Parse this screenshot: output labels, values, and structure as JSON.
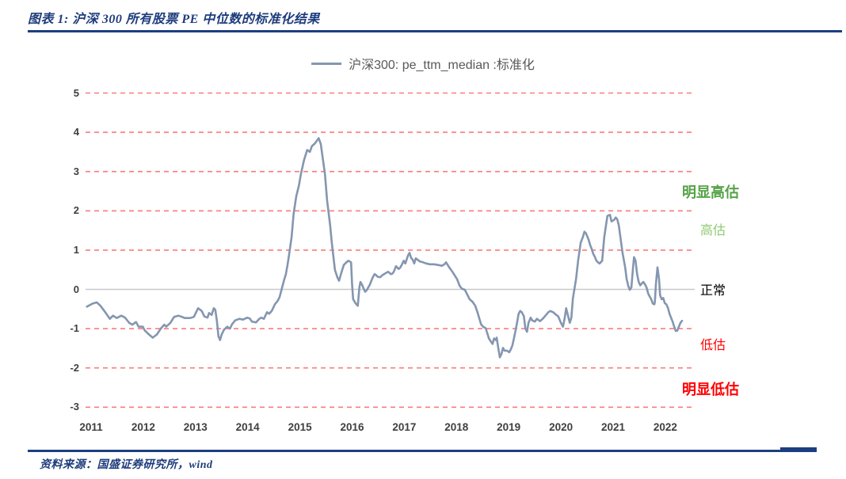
{
  "header": {
    "title": "图表 1: 沪深 300 所有股票 PE 中位数的标准化结果"
  },
  "footer": {
    "source": "资料来源：国盛证券研究所，wind"
  },
  "colors": {
    "accent_navy": "#1c3e80",
    "title_navy": "#1e3d7d",
    "line_blue_gray": "#8496B0",
    "grid_dash_red": "#FB7B7B",
    "zero_line_gray": "#C9C9C9",
    "tick_label_gray": "#3f3f3f",
    "legend_text_gray": "#595959",
    "zone_green_strong": "#55A348",
    "zone_green_light": "#90C873",
    "zone_black": "#000000",
    "zone_red": "#FF0000"
  },
  "chart_data": {
    "type": "line",
    "title": "沪深300: pe_ttm_median :标准化",
    "legend": {
      "label": "沪深300: pe_ttm_median :标准化",
      "position": "top-center",
      "line_color": "#8496B0"
    },
    "x_axis": {
      "label": "",
      "ticks": [
        2011,
        2012,
        2013,
        2014,
        2015,
        2016,
        2017,
        2018,
        2019,
        2020,
        2021,
        2022
      ],
      "range": [
        2010.88,
        2022.56
      ]
    },
    "y_axis": {
      "label": "",
      "ticks": [
        5,
        4,
        3,
        2,
        1,
        0,
        -1,
        -2,
        -3
      ],
      "range": [
        -3.45,
        5.45
      ]
    },
    "grid": {
      "style": "horizontal-dashed",
      "color": "#FB7B7B",
      "zero_line_color": "#C9C9C9"
    },
    "zone_labels": [
      {
        "label": "明显高估",
        "value": 2.47,
        "color": "#55A348",
        "bold": true
      },
      {
        "label": "高估",
        "value": 1.48,
        "color": "#90C873",
        "bold": false
      },
      {
        "label": "正常",
        "value": -0.05,
        "color": "#000000",
        "bold": false
      },
      {
        "label": "低估",
        "value": -1.44,
        "color": "#FF0000",
        "bold": false
      },
      {
        "label": "明显低估",
        "value": -2.55,
        "color": "#FF0000",
        "bold": true
      }
    ],
    "series": [
      {
        "name": "沪深300: pe_ttm_median :标准化",
        "color": "#8496B0",
        "points": [
          [
            2010.92,
            -0.44
          ],
          [
            2011.03,
            -0.36
          ],
          [
            2011.11,
            -0.33
          ],
          [
            2011.18,
            -0.42
          ],
          [
            2011.27,
            -0.58
          ],
          [
            2011.36,
            -0.75
          ],
          [
            2011.42,
            -0.67
          ],
          [
            2011.49,
            -0.73
          ],
          [
            2011.58,
            -0.67
          ],
          [
            2011.65,
            -0.72
          ],
          [
            2011.73,
            -0.85
          ],
          [
            2011.79,
            -0.9
          ],
          [
            2011.86,
            -0.83
          ],
          [
            2011.91,
            -0.95
          ],
          [
            2011.99,
            -0.95
          ],
          [
            2012.03,
            -1.05
          ],
          [
            2012.11,
            -1.15
          ],
          [
            2012.18,
            -1.23
          ],
          [
            2012.26,
            -1.15
          ],
          [
            2012.34,
            -0.99
          ],
          [
            2012.4,
            -0.9
          ],
          [
            2012.44,
            -0.95
          ],
          [
            2012.52,
            -0.85
          ],
          [
            2012.59,
            -0.7
          ],
          [
            2012.67,
            -0.67
          ],
          [
            2012.74,
            -0.7
          ],
          [
            2012.79,
            -0.73
          ],
          [
            2012.9,
            -0.73
          ],
          [
            2012.97,
            -0.7
          ],
          [
            2013.02,
            -0.56
          ],
          [
            2013.05,
            -0.48
          ],
          [
            2013.12,
            -0.55
          ],
          [
            2013.17,
            -0.69
          ],
          [
            2013.23,
            -0.72
          ],
          [
            2013.26,
            -0.6
          ],
          [
            2013.31,
            -0.65
          ],
          [
            2013.35,
            -0.48
          ],
          [
            2013.38,
            -0.52
          ],
          [
            2013.41,
            -0.8
          ],
          [
            2013.44,
            -1.2
          ],
          [
            2013.47,
            -1.29
          ],
          [
            2013.5,
            -1.15
          ],
          [
            2013.55,
            -1.02
          ],
          [
            2013.61,
            -0.95
          ],
          [
            2013.66,
            -1.0
          ],
          [
            2013.7,
            -0.89
          ],
          [
            2013.76,
            -0.79
          ],
          [
            2013.84,
            -0.75
          ],
          [
            2013.91,
            -0.77
          ],
          [
            2013.99,
            -0.72
          ],
          [
            2014.04,
            -0.74
          ],
          [
            2014.08,
            -0.82
          ],
          [
            2014.16,
            -0.84
          ],
          [
            2014.22,
            -0.75
          ],
          [
            2014.26,
            -0.72
          ],
          [
            2014.31,
            -0.75
          ],
          [
            2014.37,
            -0.58
          ],
          [
            2014.41,
            -0.62
          ],
          [
            2014.46,
            -0.55
          ],
          [
            2014.52,
            -0.38
          ],
          [
            2014.57,
            -0.3
          ],
          [
            2014.61,
            -0.2
          ],
          [
            2014.66,
            0.05
          ],
          [
            2014.7,
            0.25
          ],
          [
            2014.73,
            0.38
          ],
          [
            2014.76,
            0.6
          ],
          [
            2014.79,
            0.86
          ],
          [
            2014.84,
            1.33
          ],
          [
            2014.88,
            1.93
          ],
          [
            2014.93,
            2.37
          ],
          [
            2014.98,
            2.64
          ],
          [
            2015.02,
            2.94
          ],
          [
            2015.08,
            3.3
          ],
          [
            2015.14,
            3.55
          ],
          [
            2015.19,
            3.5
          ],
          [
            2015.23,
            3.65
          ],
          [
            2015.29,
            3.72
          ],
          [
            2015.36,
            3.85
          ],
          [
            2015.4,
            3.7
          ],
          [
            2015.43,
            3.42
          ],
          [
            2015.48,
            2.94
          ],
          [
            2015.52,
            2.27
          ],
          [
            2015.58,
            1.63
          ],
          [
            2015.61,
            1.2
          ],
          [
            2015.64,
            0.85
          ],
          [
            2015.67,
            0.5
          ],
          [
            2015.72,
            0.3
          ],
          [
            2015.75,
            0.22
          ],
          [
            2015.8,
            0.45
          ],
          [
            2015.84,
            0.62
          ],
          [
            2015.89,
            0.69
          ],
          [
            2015.93,
            0.73
          ],
          [
            2015.98,
            0.69
          ],
          [
            2016.0,
            0.12
          ],
          [
            2016.02,
            -0.25
          ],
          [
            2016.07,
            -0.36
          ],
          [
            2016.11,
            -0.42
          ],
          [
            2016.14,
            0.05
          ],
          [
            2016.16,
            0.19
          ],
          [
            2016.19,
            0.12
          ],
          [
            2016.22,
            0.02
          ],
          [
            2016.25,
            -0.06
          ],
          [
            2016.28,
            -0.02
          ],
          [
            2016.31,
            0.05
          ],
          [
            2016.34,
            0.12
          ],
          [
            2016.39,
            0.29
          ],
          [
            2016.43,
            0.39
          ],
          [
            2016.46,
            0.36
          ],
          [
            2016.49,
            0.32
          ],
          [
            2016.54,
            0.31
          ],
          [
            2016.58,
            0.36
          ],
          [
            2016.65,
            0.42
          ],
          [
            2016.69,
            0.45
          ],
          [
            2016.74,
            0.39
          ],
          [
            2016.77,
            0.4
          ],
          [
            2016.8,
            0.45
          ],
          [
            2016.84,
            0.59
          ],
          [
            2016.89,
            0.52
          ],
          [
            2016.92,
            0.55
          ],
          [
            2016.95,
            0.62
          ],
          [
            2016.99,
            0.73
          ],
          [
            2017.02,
            0.66
          ],
          [
            2017.07,
            0.86
          ],
          [
            2017.1,
            0.93
          ],
          [
            2017.13,
            0.8
          ],
          [
            2017.16,
            0.76
          ],
          [
            2017.19,
            0.66
          ],
          [
            2017.22,
            0.79
          ],
          [
            2017.25,
            0.76
          ],
          [
            2017.3,
            0.71
          ],
          [
            2017.36,
            0.69
          ],
          [
            2017.42,
            0.66
          ],
          [
            2017.49,
            0.64
          ],
          [
            2017.57,
            0.64
          ],
          [
            2017.65,
            0.62
          ],
          [
            2017.72,
            0.6
          ],
          [
            2017.77,
            0.64
          ],
          [
            2017.8,
            0.69
          ],
          [
            2017.86,
            0.56
          ],
          [
            2017.9,
            0.49
          ],
          [
            2017.95,
            0.39
          ],
          [
            2018.01,
            0.26
          ],
          [
            2018.06,
            0.09
          ],
          [
            2018.1,
            0.02
          ],
          [
            2018.16,
            -0.01
          ],
          [
            2018.21,
            -0.14
          ],
          [
            2018.25,
            -0.25
          ],
          [
            2018.31,
            -0.32
          ],
          [
            2018.36,
            -0.42
          ],
          [
            2018.4,
            -0.58
          ],
          [
            2018.47,
            -0.89
          ],
          [
            2018.51,
            -0.95
          ],
          [
            2018.56,
            -0.99
          ],
          [
            2018.62,
            -1.25
          ],
          [
            2018.66,
            -1.33
          ],
          [
            2018.69,
            -1.39
          ],
          [
            2018.72,
            -1.25
          ],
          [
            2018.75,
            -1.29
          ],
          [
            2018.77,
            -1.23
          ],
          [
            2018.8,
            -1.49
          ],
          [
            2018.83,
            -1.73
          ],
          [
            2018.86,
            -1.65
          ],
          [
            2018.89,
            -1.49
          ],
          [
            2018.92,
            -1.56
          ],
          [
            2018.97,
            -1.56
          ],
          [
            2019.01,
            -1.6
          ],
          [
            2019.04,
            -1.53
          ],
          [
            2019.07,
            -1.43
          ],
          [
            2019.1,
            -1.25
          ],
          [
            2019.13,
            -1.05
          ],
          [
            2019.16,
            -0.85
          ],
          [
            2019.19,
            -0.62
          ],
          [
            2019.22,
            -0.55
          ],
          [
            2019.25,
            -0.58
          ],
          [
            2019.29,
            -0.68
          ],
          [
            2019.32,
            -1.0
          ],
          [
            2019.35,
            -1.08
          ],
          [
            2019.38,
            -0.85
          ],
          [
            2019.42,
            -0.72
          ],
          [
            2019.45,
            -0.79
          ],
          [
            2019.5,
            -0.82
          ],
          [
            2019.54,
            -0.75
          ],
          [
            2019.6,
            -0.81
          ],
          [
            2019.65,
            -0.75
          ],
          [
            2019.69,
            -0.69
          ],
          [
            2019.76,
            -0.58
          ],
          [
            2019.8,
            -0.55
          ],
          [
            2019.85,
            -0.58
          ],
          [
            2019.91,
            -0.65
          ],
          [
            2019.95,
            -0.69
          ],
          [
            2020.0,
            -0.85
          ],
          [
            2020.04,
            -0.95
          ],
          [
            2020.07,
            -0.75
          ],
          [
            2020.1,
            -0.48
          ],
          [
            2020.14,
            -0.69
          ],
          [
            2020.17,
            -0.85
          ],
          [
            2020.2,
            -0.72
          ],
          [
            2020.23,
            -0.22
          ],
          [
            2020.29,
            0.26
          ],
          [
            2020.33,
            0.73
          ],
          [
            2020.38,
            1.19
          ],
          [
            2020.42,
            1.33
          ],
          [
            2020.45,
            1.47
          ],
          [
            2020.48,
            1.43
          ],
          [
            2020.53,
            1.27
          ],
          [
            2020.56,
            1.13
          ],
          [
            2020.59,
            1.03
          ],
          [
            2020.62,
            0.9
          ],
          [
            2020.65,
            0.83
          ],
          [
            2020.68,
            0.73
          ],
          [
            2020.71,
            0.69
          ],
          [
            2020.74,
            0.66
          ],
          [
            2020.79,
            0.73
          ],
          [
            2020.83,
            1.33
          ],
          [
            2020.89,
            1.87
          ],
          [
            2020.94,
            1.9
          ],
          [
            2020.97,
            1.73
          ],
          [
            2021.02,
            1.77
          ],
          [
            2021.05,
            1.83
          ],
          [
            2021.08,
            1.78
          ],
          [
            2021.11,
            1.63
          ],
          [
            2021.14,
            1.33
          ],
          [
            2021.18,
            0.93
          ],
          [
            2021.23,
            0.56
          ],
          [
            2021.26,
            0.26
          ],
          [
            2021.29,
            0.09
          ],
          [
            2021.32,
            -0.01
          ],
          [
            2021.35,
            0.05
          ],
          [
            2021.38,
            0.52
          ],
          [
            2021.4,
            0.82
          ],
          [
            2021.43,
            0.73
          ],
          [
            2021.46,
            0.39
          ],
          [
            2021.49,
            0.19
          ],
          [
            2021.52,
            0.1
          ],
          [
            2021.55,
            0.15
          ],
          [
            2021.58,
            0.19
          ],
          [
            2021.61,
            0.13
          ],
          [
            2021.64,
            0.05
          ],
          [
            2021.67,
            -0.1
          ],
          [
            2021.7,
            -0.18
          ],
          [
            2021.73,
            -0.25
          ],
          [
            2021.76,
            -0.36
          ],
          [
            2021.79,
            -0.38
          ],
          [
            2021.8,
            -0.32
          ],
          [
            2021.82,
            0.12
          ],
          [
            2021.85,
            0.56
          ],
          [
            2021.88,
            0.26
          ],
          [
            2021.9,
            -0.15
          ],
          [
            2021.93,
            -0.25
          ],
          [
            2021.96,
            -0.22
          ],
          [
            2021.99,
            -0.35
          ],
          [
            2022.02,
            -0.38
          ],
          [
            2022.05,
            -0.47
          ],
          [
            2022.08,
            -0.62
          ],
          [
            2022.11,
            -0.72
          ],
          [
            2022.14,
            -0.82
          ],
          [
            2022.17,
            -0.95
          ],
          [
            2022.2,
            -1.06
          ],
          [
            2022.23,
            -1.05
          ],
          [
            2022.26,
            -0.95
          ],
          [
            2022.29,
            -0.85
          ],
          [
            2022.32,
            -0.8
          ]
        ]
      }
    ]
  }
}
